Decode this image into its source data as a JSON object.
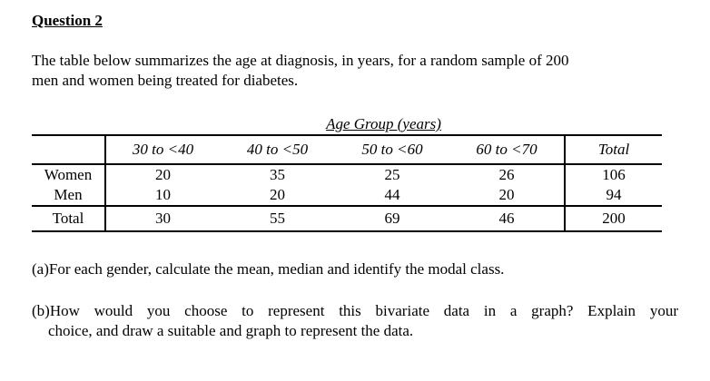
{
  "document": {
    "title": "Question 2",
    "intro": {
      "lines": [
        "The table below summarizes the age at diagnosis, in years, for a random sample of 200",
        "men and women being treated for diabetes."
      ]
    },
    "table": {
      "caption": "Age Group (years)",
      "column_headers": [
        "30 to <40",
        "40 to <50",
        "50 to <60",
        "60 to <70",
        "Total"
      ],
      "rows": [
        {
          "label": "Women",
          "values": [
            "20",
            "35",
            "25",
            "26",
            "106"
          ]
        },
        {
          "label": "Men",
          "values": [
            "10",
            "20",
            "44",
            "20",
            "94"
          ]
        },
        {
          "label": "Total",
          "values": [
            "30",
            "55",
            "69",
            "46",
            "200"
          ]
        }
      ]
    },
    "parts": {
      "a": {
        "lines": [
          "(a)For each gender, calculate the mean, median and identify the modal class."
        ]
      },
      "b": {
        "lines": [
          "(b)How would you choose to represent this bivariate data in a graph? Explain your",
          "choice, and draw a suitable and graph to represent the data."
        ]
      }
    }
  }
}
